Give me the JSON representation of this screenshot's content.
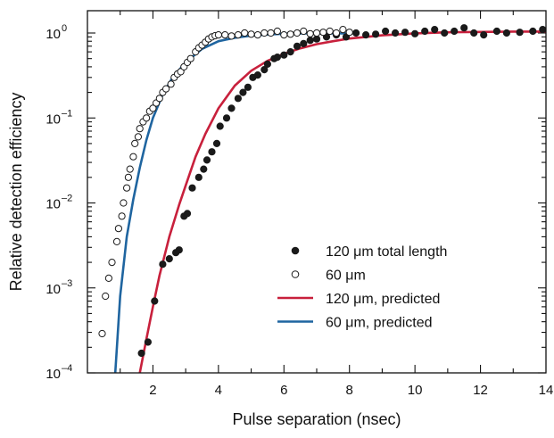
{
  "chart_data": {
    "type": "scatter",
    "title": "",
    "xlabel": "Pulse separation (nsec)",
    "ylabel": "Relative detection efficiency",
    "xlim": [
      0,
      14
    ],
    "ylim": [
      0.0001,
      1.6
    ],
    "yscale": "log",
    "grid": false,
    "legend_position": "bottom-right",
    "x_ticks": [
      2,
      4,
      6,
      8,
      10,
      12,
      14
    ],
    "x_tick_labels": [
      "2",
      "4",
      "6",
      "8",
      "10",
      "12",
      "14"
    ],
    "y_ticks": [
      0.0001,
      0.001,
      0.01,
      0.1,
      1
    ],
    "y_tick_labels": [
      {
        "base": "10",
        "exp": "–4"
      },
      {
        "base": "10",
        "exp": "–3"
      },
      {
        "base": "10",
        "exp": "–2"
      },
      {
        "base": "10",
        "exp": "–1"
      },
      {
        "base": "10",
        "exp": "0"
      }
    ],
    "series": [
      {
        "name": "120 μm total length",
        "marker": "filled-circle",
        "color": "#1a1a1a",
        "points": [
          [
            1.65,
            0.00017
          ],
          [
            1.85,
            0.00023
          ],
          [
            2.05,
            0.0007
          ],
          [
            2.3,
            0.0019
          ],
          [
            2.5,
            0.0022
          ],
          [
            2.7,
            0.0026
          ],
          [
            2.8,
            0.0028
          ],
          [
            2.95,
            0.007
          ],
          [
            3.05,
            0.0075
          ],
          [
            3.2,
            0.015
          ],
          [
            3.4,
            0.02
          ],
          [
            3.55,
            0.025
          ],
          [
            3.65,
            0.032
          ],
          [
            3.8,
            0.04
          ],
          [
            3.95,
            0.05
          ],
          [
            4.05,
            0.08
          ],
          [
            4.25,
            0.1
          ],
          [
            4.4,
            0.13
          ],
          [
            4.6,
            0.17
          ],
          [
            4.75,
            0.2
          ],
          [
            4.9,
            0.23
          ],
          [
            5.05,
            0.3
          ],
          [
            5.2,
            0.32
          ],
          [
            5.4,
            0.37
          ],
          [
            5.5,
            0.43
          ],
          [
            5.7,
            0.5
          ],
          [
            5.8,
            0.52
          ],
          [
            6.0,
            0.55
          ],
          [
            6.2,
            0.6
          ],
          [
            6.4,
            0.7
          ],
          [
            6.6,
            0.75
          ],
          [
            6.8,
            0.82
          ],
          [
            7.0,
            0.85
          ],
          [
            7.3,
            0.9
          ],
          [
            7.6,
            0.95
          ],
          [
            7.9,
            0.9
          ],
          [
            8.2,
            1.0
          ],
          [
            8.5,
            0.95
          ],
          [
            8.8,
            0.97
          ],
          [
            9.1,
            1.05
          ],
          [
            9.4,
            1.0
          ],
          [
            9.7,
            1.02
          ],
          [
            10.0,
            0.98
          ],
          [
            10.3,
            1.05
          ],
          [
            10.6,
            1.1
          ],
          [
            10.9,
            1.0
          ],
          [
            11.2,
            1.05
          ],
          [
            11.5,
            1.15
          ],
          [
            11.8,
            1.0
          ],
          [
            12.1,
            0.95
          ],
          [
            12.5,
            1.05
          ],
          [
            12.8,
            1.0
          ],
          [
            13.2,
            1.02
          ],
          [
            13.6,
            1.05
          ],
          [
            13.9,
            1.1
          ]
        ]
      },
      {
        "name": "60 μm",
        "marker": "open-circle",
        "color": "#1a1a1a",
        "points": [
          [
            0.45,
            0.00029
          ],
          [
            0.55,
            0.0008
          ],
          [
            0.65,
            0.0013
          ],
          [
            0.75,
            0.002
          ],
          [
            0.9,
            0.0035
          ],
          [
            0.95,
            0.005
          ],
          [
            1.05,
            0.007
          ],
          [
            1.1,
            0.01
          ],
          [
            1.2,
            0.015
          ],
          [
            1.25,
            0.02
          ],
          [
            1.3,
            0.025
          ],
          [
            1.4,
            0.035
          ],
          [
            1.45,
            0.05
          ],
          [
            1.55,
            0.06
          ],
          [
            1.6,
            0.075
          ],
          [
            1.7,
            0.09
          ],
          [
            1.8,
            0.1
          ],
          [
            1.9,
            0.12
          ],
          [
            2.0,
            0.13
          ],
          [
            2.1,
            0.15
          ],
          [
            2.2,
            0.17
          ],
          [
            2.3,
            0.2
          ],
          [
            2.4,
            0.22
          ],
          [
            2.55,
            0.25
          ],
          [
            2.65,
            0.3
          ],
          [
            2.75,
            0.33
          ],
          [
            2.85,
            0.35
          ],
          [
            2.95,
            0.4
          ],
          [
            3.05,
            0.45
          ],
          [
            3.15,
            0.5
          ],
          [
            3.3,
            0.6
          ],
          [
            3.4,
            0.67
          ],
          [
            3.5,
            0.72
          ],
          [
            3.6,
            0.78
          ],
          [
            3.7,
            0.85
          ],
          [
            3.8,
            0.9
          ],
          [
            3.9,
            0.93
          ],
          [
            4.0,
            0.95
          ],
          [
            4.2,
            0.95
          ],
          [
            4.4,
            0.92
          ],
          [
            4.6,
            0.95
          ],
          [
            4.8,
            1.0
          ],
          [
            5.0,
            0.97
          ],
          [
            5.2,
            0.95
          ],
          [
            5.4,
            1.0
          ],
          [
            5.6,
            1.0
          ],
          [
            5.8,
            1.05
          ],
          [
            6.0,
            0.95
          ],
          [
            6.2,
            0.97
          ],
          [
            6.4,
            1.0
          ],
          [
            6.6,
            1.05
          ],
          [
            6.8,
            0.98
          ],
          [
            7.0,
            1.0
          ],
          [
            7.2,
            1.02
          ],
          [
            7.4,
            1.05
          ],
          [
            7.6,
            1.0
          ],
          [
            7.8,
            1.1
          ],
          [
            8.0,
            1.02
          ]
        ]
      },
      {
        "name": "120 μm, predicted",
        "marker": "line",
        "color": "#c8203c",
        "points": [
          [
            1.6,
            0.0001
          ],
          [
            1.8,
            0.00025
          ],
          [
            2.0,
            0.0006
          ],
          [
            2.2,
            0.0014
          ],
          [
            2.5,
            0.004
          ],
          [
            2.8,
            0.0095
          ],
          [
            3.0,
            0.016
          ],
          [
            3.3,
            0.035
          ],
          [
            3.6,
            0.065
          ],
          [
            4.0,
            0.13
          ],
          [
            4.5,
            0.24
          ],
          [
            5.0,
            0.36
          ],
          [
            5.5,
            0.47
          ],
          [
            6.0,
            0.57
          ],
          [
            6.5,
            0.66
          ],
          [
            7.0,
            0.74
          ],
          [
            7.5,
            0.8
          ],
          [
            8.0,
            0.86
          ],
          [
            8.5,
            0.9
          ],
          [
            9.0,
            0.94
          ],
          [
            10.0,
            0.99
          ],
          [
            11.0,
            1.02
          ],
          [
            12.0,
            1.03
          ],
          [
            13.0,
            1.04
          ],
          [
            14.0,
            1.04
          ]
        ]
      },
      {
        "name": "60 μm, predicted",
        "marker": "line",
        "color": "#1f65a0",
        "points": [
          [
            0.85,
            0.0001
          ],
          [
            1.0,
            0.0008
          ],
          [
            1.2,
            0.004
          ],
          [
            1.4,
            0.011
          ],
          [
            1.6,
            0.026
          ],
          [
            1.8,
            0.055
          ],
          [
            2.0,
            0.1
          ],
          [
            2.3,
            0.19
          ],
          [
            2.6,
            0.3
          ],
          [
            3.0,
            0.45
          ],
          [
            3.5,
            0.65
          ],
          [
            4.0,
            0.8
          ],
          [
            4.5,
            0.88
          ],
          [
            5.0,
            0.93
          ],
          [
            5.5,
            0.96
          ],
          [
            6.0,
            0.98
          ],
          [
            6.5,
            0.99
          ],
          [
            7.0,
            0.99
          ],
          [
            7.5,
            0.99
          ],
          [
            8.0,
            0.99
          ]
        ]
      }
    ],
    "legend": [
      {
        "marker": "filled-circle",
        "color": "#1a1a1a",
        "label": "120 μm total length"
      },
      {
        "marker": "open-circle",
        "color": "#1a1a1a",
        "label": "60 μm"
      },
      {
        "marker": "line",
        "color": "#c8203c",
        "label": "120 μm, predicted"
      },
      {
        "marker": "line",
        "color": "#1f65a0",
        "label": "60 μm, predicted"
      }
    ]
  }
}
